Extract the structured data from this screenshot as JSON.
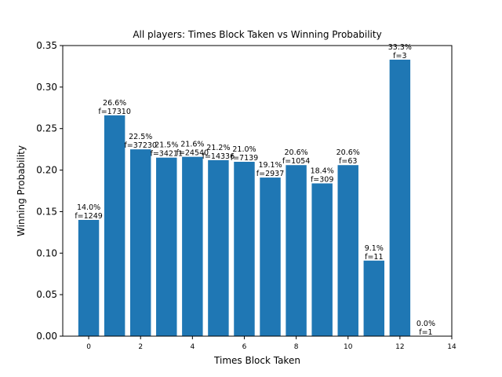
{
  "chart_data": {
    "type": "bar",
    "title": "All players: Times Block Taken vs Winning Probability",
    "xlabel": "Times Block Taken",
    "ylabel": "Winning Probability",
    "xlim": [
      -1,
      14
    ],
    "ylim": [
      0,
      0.35
    ],
    "xticks": [
      "0",
      "2",
      "4",
      "6",
      "8",
      "10",
      "12",
      "14"
    ],
    "yticks": [
      "0.00",
      "0.05",
      "0.10",
      "0.15",
      "0.20",
      "0.25",
      "0.30",
      "0.35"
    ],
    "x": [
      0,
      1,
      2,
      3,
      4,
      5,
      6,
      7,
      8,
      9,
      10,
      11,
      12,
      13
    ],
    "values": [
      0.14,
      0.266,
      0.225,
      0.215,
      0.216,
      0.212,
      0.21,
      0.191,
      0.206,
      0.184,
      0.206,
      0.091,
      0.333,
      0.0
    ],
    "labels_pct": [
      "14.0%",
      "26.6%",
      "22.5%",
      "21.5%",
      "21.6%",
      "21.2%",
      "21.0%",
      "19.1%",
      "20.6%",
      "18.4%",
      "20.6%",
      "9.1%",
      "33.3%",
      "0.0%"
    ],
    "labels_f": [
      "f=1249",
      "f=17310",
      "f=37230",
      "f=34211",
      "f=24540",
      "f=14336",
      "f=7139",
      "f=2937",
      "f=1054",
      "f=309",
      "f=63",
      "f=11",
      "f=3",
      "f=1"
    ],
    "colors": {
      "bar": "#1f77b4"
    },
    "grid": false
  }
}
